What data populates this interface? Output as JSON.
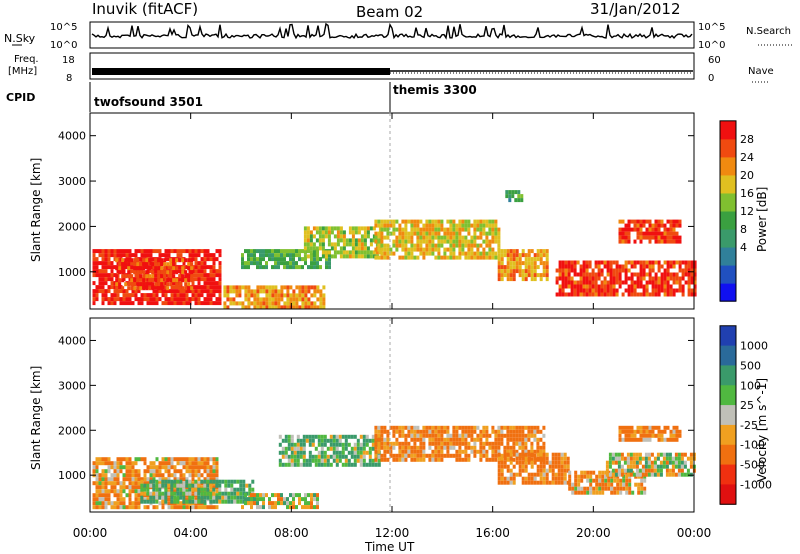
{
  "header": {
    "title": "Inuvik (fitACF)",
    "beam": "Beam 02",
    "date": "31/Jan/2012"
  },
  "panel_labels": {
    "nsky": "N.Sky",
    "nsky_ticks": [
      "10^5",
      "10^0"
    ],
    "nsearch": "N.Search",
    "nsearch_ticks": [
      "10^5",
      "10^0"
    ],
    "freq": "Freq.",
    "freq_unit": "[MHz]",
    "freq_ticks": [
      "18",
      "8"
    ],
    "nave": "Nave",
    "nave_ticks": [
      "60",
      "0"
    ],
    "cpid": "CPID"
  },
  "cpid_segments": [
    {
      "name": "twofsound 3501",
      "start_hour": 0,
      "end_hour": 12
    },
    {
      "name": "themis 3300",
      "start_hour": 12,
      "end_hour": 24
    }
  ],
  "chart_data": [
    {
      "type": "heatmap",
      "name": "power-panel",
      "x_range_hours": [
        0,
        24
      ],
      "ylim": [
        180,
        4500
      ],
      "ylabel": "Slant Range [km]",
      "yticks": [
        "1000",
        "2000",
        "3000",
        "4000"
      ],
      "colorbar": {
        "label": "Power [dB]",
        "ticks": [
          "28",
          "24",
          "20",
          "16",
          "12",
          "8",
          "4"
        ],
        "colors": [
          "#1010f0",
          "#2050c0",
          "#30809a",
          "#3a9a6a",
          "#3aa040",
          "#80c030",
          "#e0c020",
          "#f08a10",
          "#f04a10",
          "#f01010"
        ]
      },
      "regions": [
        {
          "x": [
            0.1,
            5.2
          ],
          "y": [
            300,
            1500
          ],
          "value": 28
        },
        {
          "x": [
            1.0,
            4.0
          ],
          "y": [
            600,
            1300
          ],
          "value": 26
        },
        {
          "x": [
            5.3,
            9.3
          ],
          "y": [
            250,
            700
          ],
          "value": 22
        },
        {
          "x": [
            6.0,
            9.5
          ],
          "y": [
            1100,
            1500
          ],
          "value": 14
        },
        {
          "x": [
            8.5,
            11.5
          ],
          "y": [
            1300,
            2000
          ],
          "value": 18
        },
        {
          "x": [
            11.3,
            16.2
          ],
          "y": [
            1300,
            2150
          ],
          "value": 20
        },
        {
          "x": [
            16.2,
            18.2
          ],
          "y": [
            800,
            1500
          ],
          "value": 22
        },
        {
          "x": [
            18.5,
            24.0
          ],
          "y": [
            500,
            1250
          ],
          "value": 27
        },
        {
          "x": [
            21.0,
            23.5
          ],
          "y": [
            1700,
            2150
          ],
          "value": 27
        },
        {
          "x": [
            16.5,
            17.1
          ],
          "y": [
            2600,
            2800
          ],
          "value": 12
        }
      ]
    },
    {
      "type": "heatmap",
      "name": "velocity-panel",
      "x_range_hours": [
        0,
        24
      ],
      "ylim": [
        180,
        4500
      ],
      "ylabel": "Slant Range [km]",
      "yticks": [
        "1000",
        "2000",
        "3000",
        "4000"
      ],
      "xlabel": "Time UT",
      "xticks": [
        "00:00",
        "04:00",
        "08:00",
        "12:00",
        "16:00",
        "20:00",
        "00:00"
      ],
      "colorbar": {
        "label": "Velocity [m s^-1]",
        "ticks": [
          "1000",
          "500",
          "100",
          "25",
          "-25",
          "-100",
          "-500",
          "-1000"
        ],
        "colors": [
          "#2040b0",
          "#2a6a9a",
          "#3a9a6a",
          "#50b840",
          "#c0c0b8",
          "#f0a020",
          "#f07010",
          "#f03010",
          "#e01010"
        ]
      },
      "regions": [
        {
          "x": [
            0.1,
            5.0
          ],
          "y": [
            300,
            1400
          ],
          "value": -100
        },
        {
          "x": [
            2.0,
            6.5
          ],
          "y": [
            400,
            900
          ],
          "value": 100
        },
        {
          "x": [
            6.0,
            9.0
          ],
          "y": [
            250,
            600
          ],
          "value": 0
        },
        {
          "x": [
            7.5,
            11.5
          ],
          "y": [
            1200,
            1900
          ],
          "value": 100
        },
        {
          "x": [
            11.3,
            18.0
          ],
          "y": [
            1300,
            2100
          ],
          "value": -150
        },
        {
          "x": [
            16.2,
            19.0
          ],
          "y": [
            800,
            1500
          ],
          "value": -150
        },
        {
          "x": [
            19.0,
            22.0
          ],
          "y": [
            600,
            1100
          ],
          "value": -100
        },
        {
          "x": [
            20.5,
            24.0
          ],
          "y": [
            1000,
            1500
          ],
          "value": 0
        },
        {
          "x": [
            21.0,
            23.5
          ],
          "y": [
            1800,
            2100
          ],
          "value": -150
        }
      ]
    }
  ]
}
